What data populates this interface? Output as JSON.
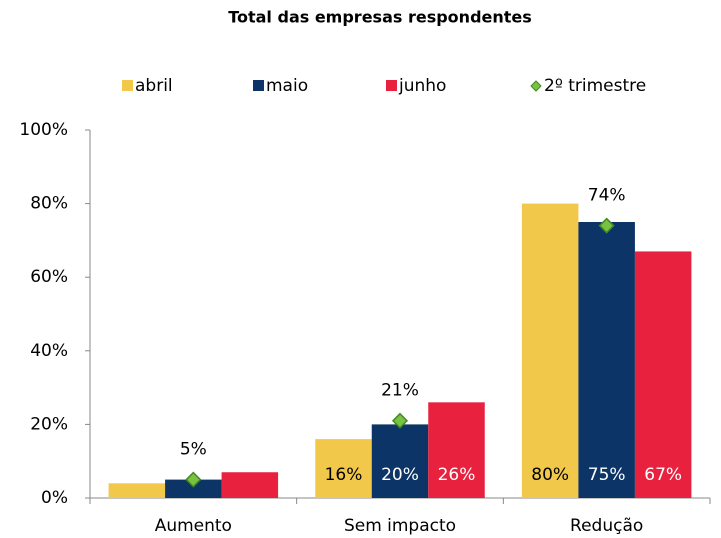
{
  "chart_data": {
    "type": "bar",
    "title": "Total das empresas respondentes",
    "categories": [
      "Aumento",
      "Sem impacto",
      "Redução"
    ],
    "series": [
      {
        "name": "abril",
        "color": "#f2c84b",
        "type": "bar",
        "values": [
          4,
          16,
          80
        ],
        "value_labels": [
          null,
          "16%",
          "80%"
        ]
      },
      {
        "name": "maio",
        "color": "#0c3466",
        "type": "bar",
        "values": [
          5,
          20,
          75
        ],
        "value_labels": [
          null,
          "20%",
          "75%"
        ]
      },
      {
        "name": "junho",
        "color": "#e8213f",
        "type": "bar",
        "values": [
          7,
          26,
          67
        ],
        "value_labels": [
          null,
          "26%",
          "67%"
        ]
      },
      {
        "name": "2º trimestre",
        "color": "#7ac143",
        "type": "marker",
        "values": [
          5,
          21,
          74
        ],
        "value_labels": [
          "5%",
          "21%",
          "74%"
        ]
      }
    ],
    "ylim": [
      0,
      100
    ],
    "yticks": [
      {
        "value": 0,
        "label": "0%"
      },
      {
        "value": 20,
        "label": "20%"
      },
      {
        "value": 40,
        "label": "40%"
      },
      {
        "value": 60,
        "label": "60%"
      },
      {
        "value": 80,
        "label": "80%"
      },
      {
        "value": 100,
        "label": "100%"
      }
    ],
    "grid": false,
    "legend": "top"
  }
}
